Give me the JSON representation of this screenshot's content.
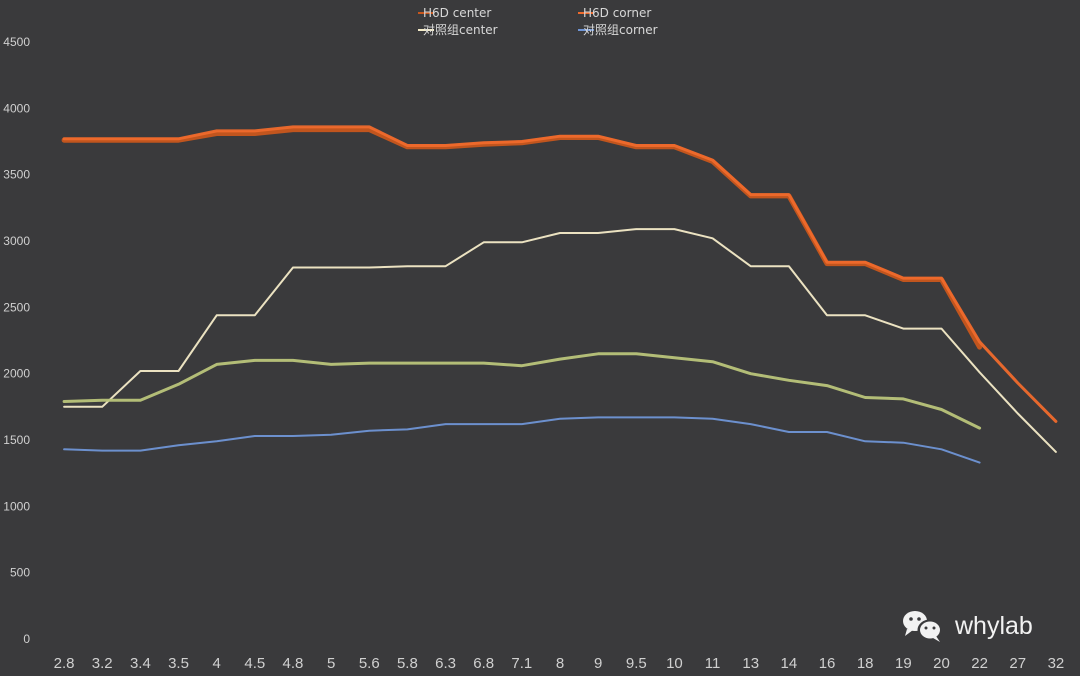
{
  "chart_data": {
    "type": "line",
    "title": "",
    "xlabel": "",
    "ylabel": "",
    "ylim": [
      0,
      4500
    ],
    "yticks": [
      0,
      500,
      1000,
      1500,
      2000,
      2500,
      3000,
      3500,
      4000,
      4500
    ],
    "categories": [
      "2.8",
      "3.2",
      "3.4",
      "3.5",
      "4",
      "4.5",
      "4.8",
      "5",
      "5.6",
      "5.8",
      "6.3",
      "6.8",
      "7.1",
      "8",
      "9",
      "9.5",
      "10",
      "11",
      "13",
      "14",
      "16",
      "18",
      "19",
      "20",
      "22",
      "27",
      "32"
    ],
    "grid": false,
    "legend_position": "top",
    "series": [
      {
        "name": "H6D center",
        "color": "#c8561c",
        "width": 5,
        "values": [
          3760,
          3760,
          3760,
          3760,
          3810,
          3810,
          3840,
          3840,
          3840,
          3710,
          3710,
          3730,
          3740,
          3780,
          3780,
          3710,
          3710,
          3600,
          3340,
          3340,
          2830,
          2830,
          2710,
          2710,
          2200,
          null,
          null
        ]
      },
      {
        "name": "H6D corner",
        "color": "#ef6a2c",
        "width": 3,
        "values": [
          3770,
          3770,
          3770,
          3770,
          3830,
          3830,
          3860,
          3860,
          3860,
          3720,
          3720,
          3740,
          3750,
          3790,
          3790,
          3720,
          3720,
          3610,
          3350,
          3350,
          2840,
          2840,
          2720,
          2720,
          2240,
          1930,
          1640
        ]
      },
      {
        "name": "对照组center",
        "color": "#f4ebc8",
        "width": 2,
        "values": [
          1750,
          1750,
          2020,
          2020,
          2440,
          2440,
          2800,
          2800,
          2800,
          2810,
          2810,
          2990,
          2990,
          3060,
          3060,
          3090,
          3090,
          3020,
          2810,
          2810,
          2440,
          2440,
          2340,
          2340,
          2010,
          1700,
          1410
        ]
      },
      {
        "name": "对照组corner",
        "color": "#6f95d6",
        "width": 2,
        "values": [
          1430,
          1420,
          1420,
          1460,
          1490,
          1530,
          1530,
          1540,
          1570,
          1580,
          1620,
          1620,
          1620,
          1660,
          1670,
          1670,
          1670,
          1660,
          1620,
          1560,
          1560,
          1490,
          1480,
          1430,
          1330,
          null,
          null
        ]
      },
      {
        "name": "",
        "color": "#b9c47a",
        "width": 3,
        "values": [
          1790,
          1800,
          1800,
          1920,
          2070,
          2100,
          2100,
          2070,
          2080,
          2080,
          2080,
          2080,
          2060,
          2110,
          2150,
          2150,
          2120,
          2090,
          2000,
          1950,
          1910,
          1820,
          1810,
          1730,
          1590,
          null,
          null
        ]
      }
    ]
  },
  "watermark": {
    "text": "whylab",
    "icon": "wechat-icon"
  }
}
